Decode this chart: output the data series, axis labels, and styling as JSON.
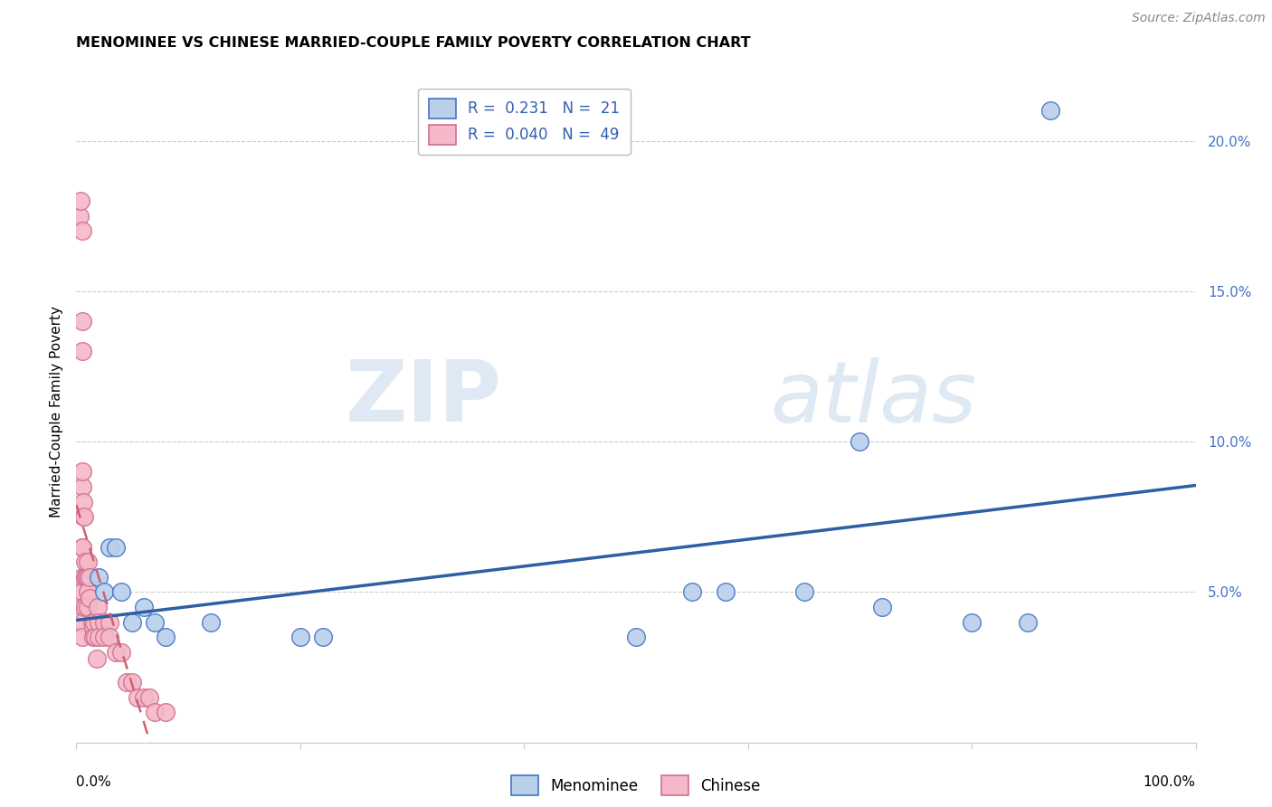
{
  "title": "MENOMINEE VS CHINESE MARRIED-COUPLE FAMILY POVERTY CORRELATION CHART",
  "source": "Source: ZipAtlas.com",
  "ylabel": "Married-Couple Family Poverty",
  "yticks": [
    0.0,
    0.05,
    0.1,
    0.15,
    0.2
  ],
  "ytick_labels": [
    "",
    "5.0%",
    "10.0%",
    "15.0%",
    "20.0%"
  ],
  "xlim": [
    0.0,
    1.0
  ],
  "ylim": [
    0.0,
    0.22
  ],
  "watermark_zip": "ZIP",
  "watermark_atlas": "atlas",
  "menominee_R": "0.231",
  "menominee_N": "21",
  "chinese_R": "0.040",
  "chinese_N": "49",
  "menominee_color": "#b8d0ea",
  "menominee_edge": "#4472c4",
  "chinese_color": "#f4b8c8",
  "chinese_edge": "#d07090",
  "trend_menominee_color": "#2e5fa3",
  "trend_chinese_color": "#d06070",
  "background_color": "#ffffff",
  "grid_color": "#cccccc",
  "menominee_x": [
    0.02,
    0.025,
    0.03,
    0.035,
    0.04,
    0.05,
    0.06,
    0.07,
    0.08,
    0.12,
    0.2,
    0.22,
    0.55,
    0.58,
    0.65,
    0.7,
    0.72,
    0.8,
    0.85,
    0.87,
    0.5
  ],
  "menominee_y": [
    0.055,
    0.05,
    0.065,
    0.065,
    0.05,
    0.04,
    0.045,
    0.04,
    0.035,
    0.04,
    0.035,
    0.035,
    0.05,
    0.05,
    0.05,
    0.1,
    0.045,
    0.04,
    0.04,
    0.21,
    0.035
  ],
  "chinese_x": [
    0.003,
    0.004,
    0.005,
    0.005,
    0.005,
    0.005,
    0.005,
    0.005,
    0.005,
    0.005,
    0.005,
    0.005,
    0.005,
    0.005,
    0.006,
    0.006,
    0.007,
    0.008,
    0.008,
    0.008,
    0.009,
    0.01,
    0.01,
    0.01,
    0.01,
    0.012,
    0.012,
    0.014,
    0.015,
    0.015,
    0.016,
    0.017,
    0.018,
    0.019,
    0.02,
    0.02,
    0.025,
    0.025,
    0.03,
    0.03,
    0.035,
    0.04,
    0.045,
    0.05,
    0.055,
    0.06,
    0.065,
    0.07,
    0.08
  ],
  "chinese_y": [
    0.175,
    0.18,
    0.17,
    0.14,
    0.13,
    0.085,
    0.09,
    0.065,
    0.065,
    0.055,
    0.05,
    0.045,
    0.04,
    0.035,
    0.075,
    0.08,
    0.075,
    0.06,
    0.055,
    0.045,
    0.055,
    0.055,
    0.05,
    0.045,
    0.06,
    0.048,
    0.055,
    0.04,
    0.038,
    0.035,
    0.04,
    0.035,
    0.028,
    0.045,
    0.04,
    0.035,
    0.04,
    0.035,
    0.04,
    0.035,
    0.03,
    0.03,
    0.02,
    0.02,
    0.015,
    0.015,
    0.015,
    0.01,
    0.01
  ]
}
